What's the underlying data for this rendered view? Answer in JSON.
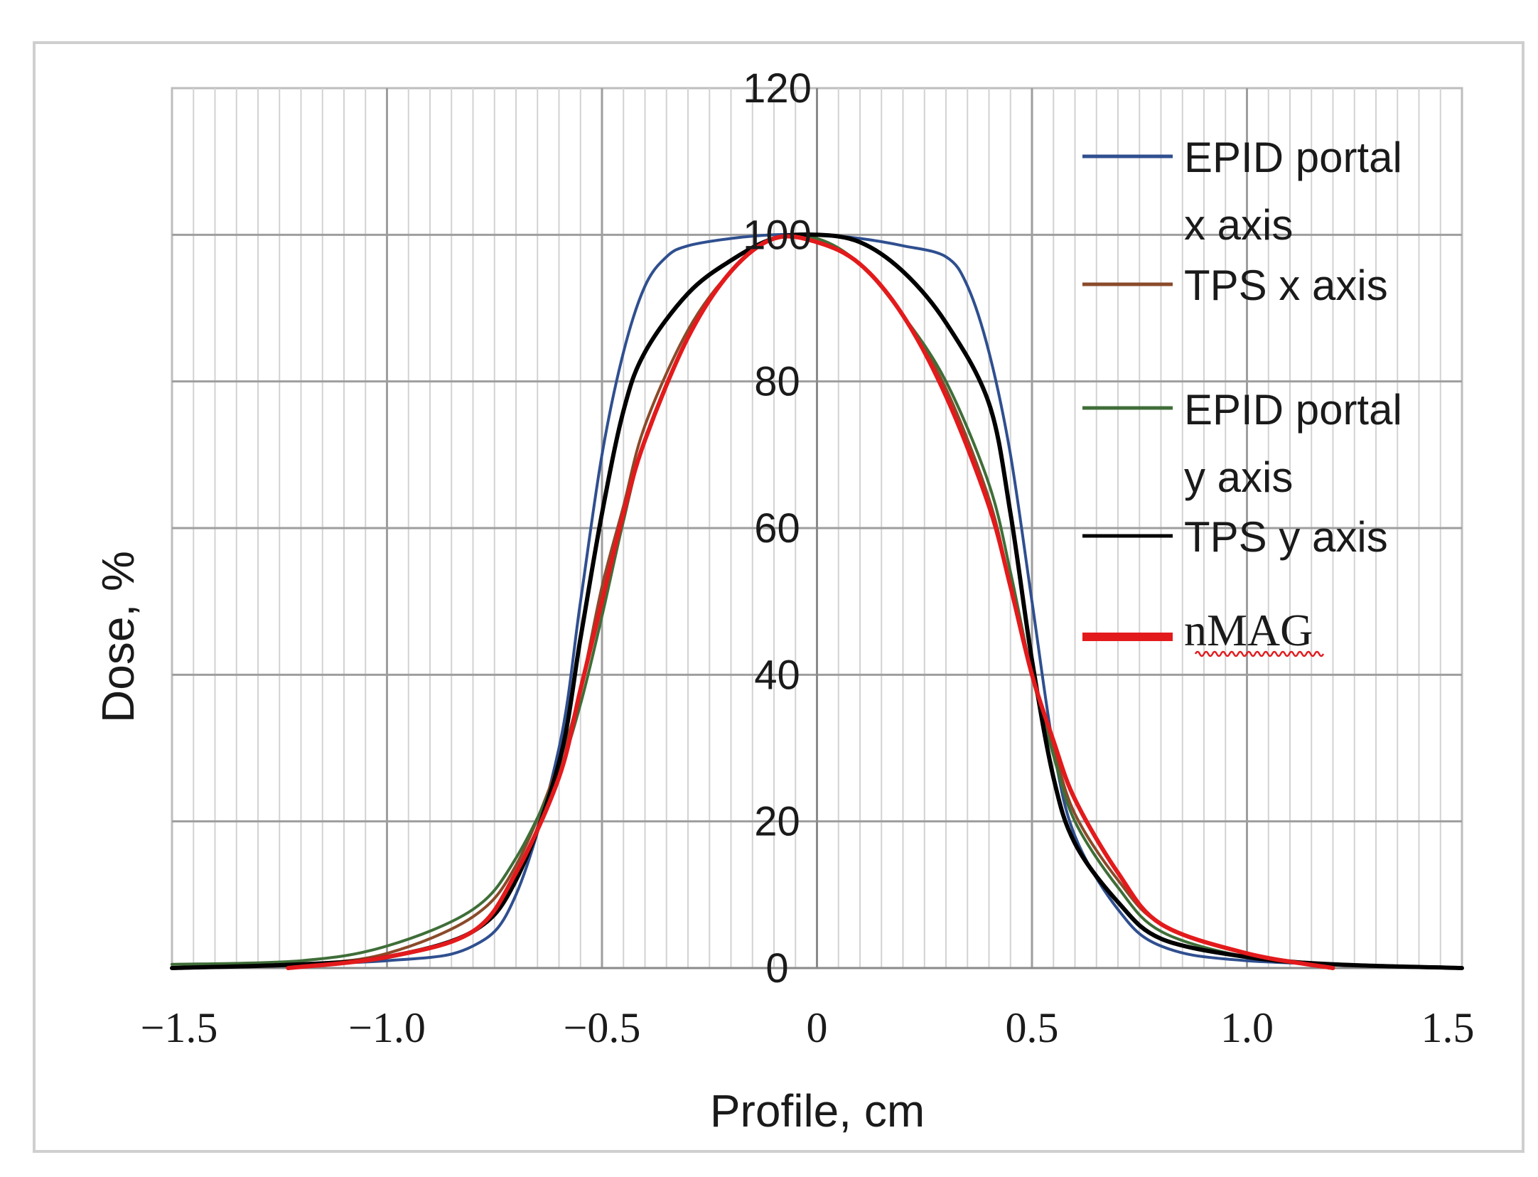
{
  "chart_data": {
    "type": "line",
    "title": "",
    "xlabel": "Profile, cm",
    "ylabel": "Dose, %",
    "xlim": [
      -1.5,
      1.5
    ],
    "ylim": [
      0,
      120
    ],
    "x_tick_values": [
      -1.5,
      -1.0,
      -0.5,
      0,
      0.5,
      1.0,
      1.5
    ],
    "x_tick_labels": [
      "−1.5",
      "−1.0",
      "−0.5",
      "0",
      "0.5",
      "1.0",
      "1.5"
    ],
    "y_tick_values": [
      0,
      20,
      40,
      60,
      80,
      100,
      120
    ],
    "y_tick_labels": [
      "0",
      "20",
      "40",
      "60",
      "80",
      "100",
      "120"
    ],
    "grid": true,
    "legend_position": "right",
    "series": [
      {
        "name": "EPID portal x axis",
        "legend_lines": [
          "EPID portal",
          "x axis"
        ],
        "color": "#2f4f8f",
        "width": 4,
        "x": [
          -1.5,
          -1.0,
          -0.8,
          -0.7,
          -0.6,
          -0.55,
          -0.5,
          -0.45,
          -0.4,
          -0.35,
          -0.3,
          -0.2,
          -0.1,
          0,
          0.1,
          0.2,
          0.3,
          0.35,
          0.4,
          0.45,
          0.5,
          0.55,
          0.6,
          0.7,
          0.8,
          1.0,
          1.5
        ],
        "y": [
          0,
          1,
          3,
          10,
          30,
          50,
          70,
          84,
          93,
          97,
          98.5,
          99.5,
          100,
          100,
          99.5,
          98.5,
          97,
          93,
          84,
          70,
          50,
          30,
          18,
          8,
          3,
          1,
          0
        ]
      },
      {
        "name": "TPS x axis",
        "legend_lines": [
          "TPS x axis"
        ],
        "color": "#8a4a2a",
        "width": 4,
        "x": [
          -1.5,
          -1.2,
          -1.0,
          -0.8,
          -0.7,
          -0.6,
          -0.55,
          -0.5,
          -0.45,
          -0.4,
          -0.3,
          -0.2,
          -0.1,
          0,
          0.1,
          0.2,
          0.3,
          0.4,
          0.45,
          0.5,
          0.55,
          0.6,
          0.7,
          0.8,
          1.0,
          1.2,
          1.5
        ],
        "y": [
          0,
          0.5,
          2,
          7,
          14,
          28,
          38,
          52,
          63,
          74,
          87,
          95,
          99.5,
          99.5,
          96,
          89,
          79,
          64,
          52,
          40,
          30,
          21,
          12,
          6,
          2,
          0.5,
          0
        ]
      },
      {
        "name": "EPID portal y axis",
        "legend_lines": [
          "EPID portal",
          "y axis"
        ],
        "color": "#3f6e38",
        "width": 4,
        "x": [
          -1.5,
          -1.2,
          -1.0,
          -0.8,
          -0.7,
          -0.6,
          -0.55,
          -0.5,
          -0.45,
          -0.4,
          -0.3,
          -0.2,
          -0.1,
          0,
          0.1,
          0.2,
          0.3,
          0.4,
          0.45,
          0.5,
          0.55,
          0.6,
          0.7,
          0.8,
          1.0,
          1.2,
          1.5
        ],
        "y": [
          0.5,
          1,
          3,
          8,
          15,
          27,
          36,
          48,
          61,
          72,
          86,
          95,
          99.5,
          99.5,
          96,
          89,
          80,
          66,
          54,
          40,
          29,
          20,
          11,
          5,
          1.5,
          0.5,
          0
        ]
      },
      {
        "name": "TPS y axis",
        "legend_lines": [
          "TPS y axis"
        ],
        "color": "#000000",
        "width": 6,
        "x": [
          -1.5,
          -1.2,
          -1.0,
          -0.8,
          -0.7,
          -0.6,
          -0.55,
          -0.5,
          -0.45,
          -0.4,
          -0.3,
          -0.2,
          -0.1,
          0,
          0.1,
          0.2,
          0.3,
          0.4,
          0.45,
          0.5,
          0.55,
          0.6,
          0.7,
          0.8,
          1.0,
          1.2,
          1.5
        ],
        "y": [
          0,
          0.5,
          1.5,
          5,
          12,
          28,
          45,
          62,
          76,
          84,
          92,
          96.5,
          99.5,
          100,
          99,
          95,
          88,
          77,
          62,
          42,
          26,
          17,
          9,
          4,
          1.5,
          0.5,
          0
        ]
      },
      {
        "name": "nMAG",
        "legend_lines": [
          "nMAG"
        ],
        "color": "#e31a1c",
        "width": 6,
        "legend_thick": true,
        "x": [
          -1.23,
          -1.0,
          -0.8,
          -0.7,
          -0.6,
          -0.55,
          -0.5,
          -0.45,
          -0.4,
          -0.3,
          -0.2,
          -0.1,
          0,
          0.1,
          0.2,
          0.3,
          0.4,
          0.45,
          0.5,
          0.55,
          0.6,
          0.7,
          0.8,
          1.0,
          1.2
        ],
        "y": [
          0,
          1.5,
          5,
          13,
          26,
          38,
          50,
          62,
          72,
          86,
          95,
          99.5,
          99,
          96,
          89,
          78,
          63,
          52,
          40,
          31,
          23,
          13,
          6,
          2,
          0
        ]
      }
    ]
  }
}
